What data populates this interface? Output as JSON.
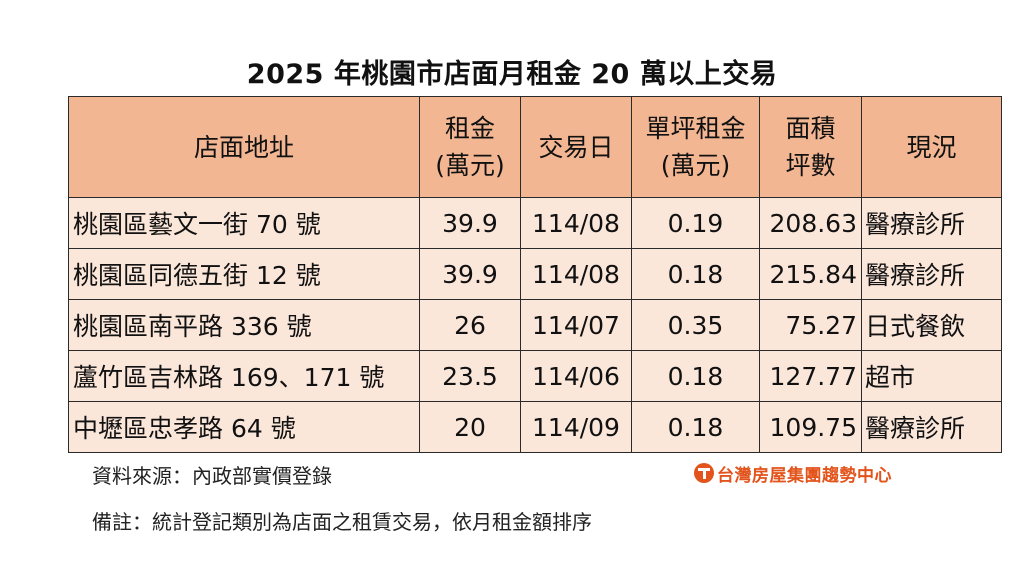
{
  "title": "2025 年桃園市店面月租金 20 萬以上交易",
  "table": {
    "headers": [
      {
        "line1": "店面地址",
        "line2": ""
      },
      {
        "line1": "租金",
        "line2": "(萬元)"
      },
      {
        "line1": "交易日",
        "line2": ""
      },
      {
        "line1": "單坪租金",
        "line2": "(萬元)"
      },
      {
        "line1": "面積",
        "line2": "坪數"
      },
      {
        "line1": "現況",
        "line2": ""
      }
    ],
    "rows": [
      {
        "address": "桃園區藝文一街 70 號",
        "rent": "39.9",
        "date": "114/08",
        "unit_rent": "0.19",
        "area": "208.63",
        "status": "醫療診所"
      },
      {
        "address": "桃園區同德五街 12 號",
        "rent": "39.9",
        "date": "114/08",
        "unit_rent": "0.18",
        "area": "215.84",
        "status": "醫療診所"
      },
      {
        "address": "桃園區南平路 336 號",
        "rent": "26",
        "date": "114/07",
        "unit_rent": "0.35",
        "area": "75.27",
        "status": "日式餐飲"
      },
      {
        "address": "蘆竹區吉林路 169、171 號",
        "rent": "23.5",
        "date": "114/06",
        "unit_rent": "0.18",
        "area": "127.77",
        "status": "超市"
      },
      {
        "address": "中壢區忠孝路 64 號",
        "rent": "20",
        "date": "114/09",
        "unit_rent": "0.18",
        "area": "109.75",
        "status": "醫療診所"
      }
    ]
  },
  "footer": {
    "source": "資料來源：內政部實價登錄",
    "note": "備註：統計登記類別為店面之租賃交易，依月租金額排序",
    "logo_text": "台灣房屋集團趨勢中心",
    "logo_color": "#e2541c"
  },
  "colors": {
    "header_bg": "#f2b693",
    "cell_bg": "#fbe6da",
    "border": "#2a2a2a"
  }
}
